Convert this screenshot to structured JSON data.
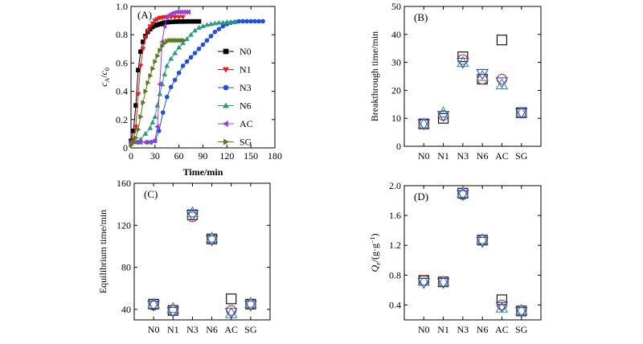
{
  "chart_data": [
    {
      "id": "A",
      "type": "line",
      "panel_label": "(A)",
      "xlabel": "Time/min",
      "ylabel_main": "c",
      "ylabel_sub_num": "A",
      "ylabel_sep": "/",
      "ylabel_sub_den": "0",
      "xlim": [
        0,
        180
      ],
      "ylim": [
        0,
        1.0
      ],
      "xticks": [
        0,
        30,
        60,
        90,
        120,
        150,
        180
      ],
      "yticks": [
        0,
        0.2,
        0.4,
        0.6,
        0.8,
        1.0
      ],
      "xtick_labels": [
        "0",
        "30",
        "60",
        "90",
        "120",
        "150",
        "180"
      ],
      "ytick_labels": [
        "0",
        "0.2",
        "0.4",
        "0.6",
        "0.8",
        "1.0"
      ],
      "legend_position": "right",
      "series": [
        {
          "name": "N0",
          "color": "#000000",
          "marker": "square",
          "x": [
            0,
            3,
            6,
            9,
            12,
            15,
            18,
            21,
            24,
            27,
            30,
            33,
            36,
            39,
            42,
            45,
            50,
            55,
            60,
            65,
            70,
            75,
            80,
            85
          ],
          "y": [
            0.05,
            0.12,
            0.3,
            0.55,
            0.68,
            0.75,
            0.79,
            0.82,
            0.84,
            0.855,
            0.865,
            0.87,
            0.875,
            0.88,
            0.885,
            0.888,
            0.89,
            0.892,
            0.893,
            0.893,
            0.894,
            0.894,
            0.894,
            0.894
          ]
        },
        {
          "name": "N1",
          "color": "#e81c1c",
          "marker": "triangle-down",
          "x": [
            0,
            3,
            6,
            9,
            12,
            15,
            18,
            21,
            24,
            27,
            30,
            33,
            36,
            39,
            42,
            45,
            50,
            55,
            60,
            65
          ],
          "y": [
            0.04,
            0.06,
            0.15,
            0.38,
            0.58,
            0.7,
            0.78,
            0.83,
            0.86,
            0.88,
            0.9,
            0.91,
            0.92,
            0.92,
            0.925,
            0.925,
            0.925,
            0.925,
            0.925,
            0.925
          ]
        },
        {
          "name": "N3",
          "color": "#1f4fe0",
          "marker": "circle",
          "x": [
            0,
            10,
            20,
            25,
            30,
            35,
            40,
            45,
            50,
            55,
            60,
            65,
            70,
            75,
            80,
            85,
            90,
            95,
            100,
            105,
            110,
            115,
            120,
            125,
            130,
            135,
            140,
            145,
            150,
            155,
            160,
            165
          ],
          "y": [
            0.04,
            0.04,
            0.04,
            0.04,
            0.05,
            0.12,
            0.25,
            0.36,
            0.43,
            0.48,
            0.53,
            0.58,
            0.61,
            0.64,
            0.67,
            0.7,
            0.73,
            0.76,
            0.79,
            0.82,
            0.84,
            0.86,
            0.875,
            0.885,
            0.89,
            0.895,
            0.895,
            0.895,
            0.895,
            0.895,
            0.895,
            0.895
          ]
        },
        {
          "name": "N6",
          "color": "#2a9a80",
          "marker": "triangle-up",
          "x": [
            0,
            6,
            12,
            18,
            24,
            27,
            30,
            33,
            36,
            39,
            42,
            45,
            50,
            55,
            60,
            65,
            70,
            75,
            80,
            85,
            90,
            95,
            100,
            105,
            110,
            115,
            120,
            125,
            130
          ],
          "y": [
            0.03,
            0.04,
            0.06,
            0.1,
            0.14,
            0.18,
            0.22,
            0.3,
            0.38,
            0.45,
            0.52,
            0.58,
            0.63,
            0.67,
            0.71,
            0.74,
            0.77,
            0.8,
            0.83,
            0.85,
            0.86,
            0.87,
            0.875,
            0.88,
            0.885,
            0.885,
            0.89,
            0.89,
            0.89
          ]
        },
        {
          "name": "AC",
          "color": "#9b3fd1",
          "marker": "triangle-left",
          "x": [
            0,
            6,
            12,
            18,
            24,
            30,
            33,
            36,
            39,
            42,
            45,
            48,
            51,
            54,
            57,
            60,
            63,
            66,
            69,
            72
          ],
          "y": [
            0.04,
            0.04,
            0.04,
            0.04,
            0.04,
            0.05,
            0.15,
            0.45,
            0.75,
            0.86,
            0.92,
            0.94,
            0.95,
            0.955,
            0.96,
            0.96,
            0.96,
            0.96,
            0.96,
            0.96
          ]
        },
        {
          "name": "SG",
          "color": "#557a1a",
          "marker": "triangle-right",
          "x": [
            0,
            3,
            6,
            9,
            12,
            15,
            18,
            21,
            24,
            27,
            30,
            33,
            36,
            39,
            42,
            45,
            48,
            51,
            54,
            57,
            60,
            63,
            66
          ],
          "y": [
            0.02,
            0.04,
            0.07,
            0.13,
            0.22,
            0.32,
            0.4,
            0.46,
            0.51,
            0.56,
            0.61,
            0.65,
            0.69,
            0.72,
            0.74,
            0.755,
            0.76,
            0.76,
            0.76,
            0.76,
            0.76,
            0.76,
            0.76
          ]
        }
      ]
    },
    {
      "id": "B",
      "type": "scatter",
      "panel_label": "(B)",
      "ylabel": "Breakthrough time/min",
      "ylim": [
        0,
        50
      ],
      "yticks": [
        0,
        10,
        20,
        30,
        40,
        50
      ],
      "ytick_labels": [
        "0",
        "10",
        "20",
        "30",
        "40",
        "50"
      ],
      "categories": [
        "N0",
        "N1",
        "N3",
        "N6",
        "AC",
        "SG"
      ],
      "series": [
        {
          "name": "square",
          "color": "#000000",
          "marker": "open-square",
          "values": [
            8,
            10,
            32,
            24,
            38,
            12
          ]
        },
        {
          "name": "circle",
          "color": "#e81c1c",
          "marker": "open-circle",
          "values": [
            8,
            11,
            31,
            24,
            24,
            12
          ]
        },
        {
          "name": "triangle-up",
          "color": "#2a9a80",
          "marker": "open-triangle-up",
          "values": [
            8,
            12,
            30,
            25,
            22,
            12
          ]
        },
        {
          "name": "triangle-down",
          "color": "#1f4fe0",
          "marker": "open-triangle-down",
          "values": [
            8,
            11,
            30,
            26,
            23,
            12
          ]
        }
      ]
    },
    {
      "id": "C",
      "type": "scatter",
      "panel_label": "(C)",
      "ylabel": "Equilibrium time/min",
      "ylim": [
        30,
        160
      ],
      "yticks": [
        40,
        80,
        120,
        160
      ],
      "ytick_labels": [
        "40",
        "80",
        "120",
        "160"
      ],
      "categories": [
        "N0",
        "N1",
        "N3",
        "N6",
        "AC",
        "SG"
      ],
      "series": [
        {
          "name": "square",
          "color": "#000000",
          "marker": "open-square",
          "values": [
            45,
            39,
            130,
            107,
            50,
            45
          ]
        },
        {
          "name": "circle",
          "color": "#e81c1c",
          "marker": "open-circle",
          "values": [
            44,
            39,
            128,
            107,
            39,
            45
          ]
        },
        {
          "name": "triangle-up",
          "color": "#2a9a80",
          "marker": "open-triangle-up",
          "values": [
            45,
            41,
            132,
            108,
            36,
            46
          ]
        },
        {
          "name": "triangle-down",
          "color": "#1f4fe0",
          "marker": "open-triangle-down",
          "values": [
            44,
            38,
            130,
            106,
            37,
            44
          ]
        }
      ]
    },
    {
      "id": "D",
      "type": "scatter",
      "panel_label": "(D)",
      "ylabel_main": "Q",
      "ylabel_sub": "e",
      "ylabel_units": "/(g·g",
      "ylabel_sup": "−1",
      "ylabel_close": ")",
      "ylim": [
        0.2,
        2.0
      ],
      "yticks": [
        0.4,
        0.8,
        1.2,
        1.6,
        2.0
      ],
      "ytick_labels": [
        "0.4",
        "0.8",
        "1.2",
        "1.6",
        "2.0"
      ],
      "categories": [
        "N0",
        "N1",
        "N3",
        "N6",
        "AC",
        "SG"
      ],
      "series": [
        {
          "name": "square",
          "color": "#000000",
          "marker": "open-square",
          "values": [
            0.73,
            0.71,
            1.9,
            1.27,
            0.47,
            0.32
          ]
        },
        {
          "name": "circle",
          "color": "#e81c1c",
          "marker": "open-circle",
          "values": [
            0.73,
            0.71,
            1.88,
            1.27,
            0.4,
            0.32
          ]
        },
        {
          "name": "triangle-up",
          "color": "#2a9a80",
          "marker": "open-triangle-up",
          "values": [
            0.72,
            0.71,
            1.9,
            1.28,
            0.36,
            0.33
          ]
        },
        {
          "name": "triangle-down",
          "color": "#1f4fe0",
          "marker": "open-triangle-down",
          "values": [
            0.7,
            0.7,
            1.88,
            1.25,
            0.38,
            0.31
          ]
        }
      ]
    }
  ]
}
